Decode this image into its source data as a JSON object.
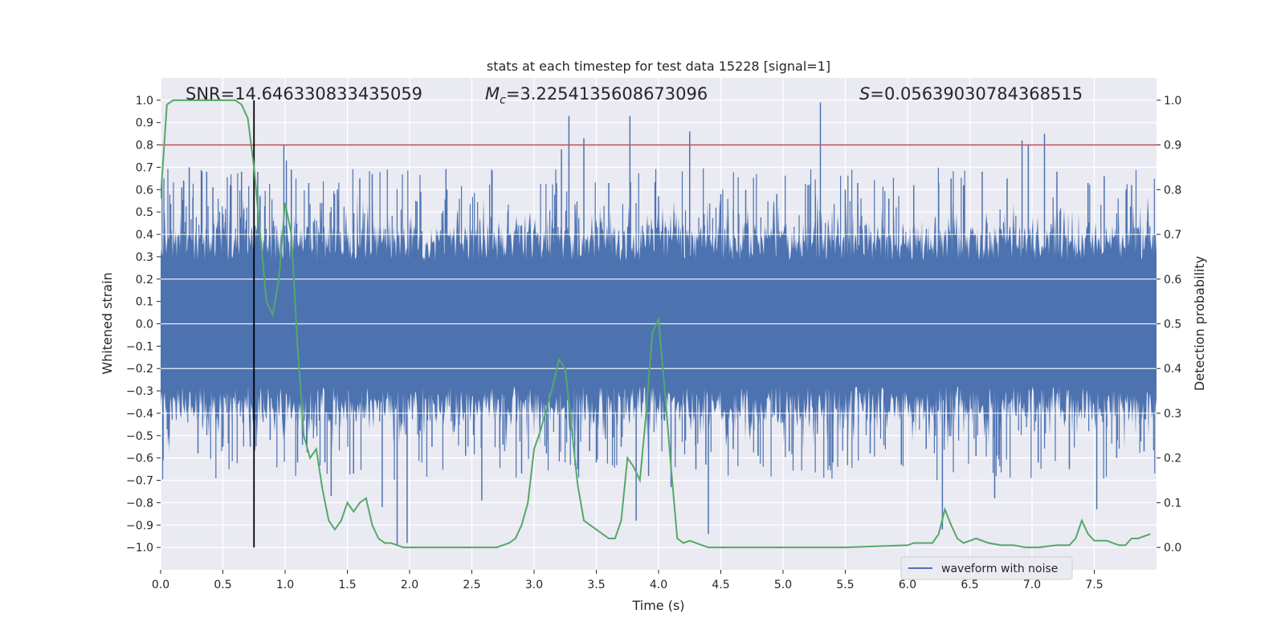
{
  "chart_data": {
    "type": "line",
    "title": "stats at each timestep for test data 15228 [signal=1]",
    "xlabel": "Time (s)",
    "ylabel": "Whitened strain",
    "y2label": "Detection probability",
    "xlim": [
      0,
      8
    ],
    "ylim": [
      -1.1,
      1.1
    ],
    "y2lim": [
      -0.05,
      1.05
    ],
    "x_ticks": [
      0.0,
      0.5,
      1.0,
      1.5,
      2.0,
      2.5,
      3.0,
      3.5,
      4.0,
      4.5,
      5.0,
      5.5,
      6.0,
      6.5,
      7.0,
      7.5
    ],
    "x_tick_labels": [
      "0.0",
      "0.5",
      "1.0",
      "1.5",
      "2.0",
      "2.5",
      "3.0",
      "3.5",
      "4.0",
      "4.5",
      "5.0",
      "5.5",
      "6.0",
      "6.5",
      "7.0",
      "7.5"
    ],
    "y_ticks": [
      -1.0,
      -0.9,
      -0.8,
      -0.7,
      -0.6,
      -0.5,
      -0.4,
      -0.3,
      -0.2,
      -0.1,
      0.0,
      0.1,
      0.2,
      0.3,
      0.4,
      0.5,
      0.6,
      0.7,
      0.8,
      0.9,
      1.0
    ],
    "y_tick_labels": [
      "−1.0",
      "−0.9",
      "−0.8",
      "−0.7",
      "−0.6",
      "−0.5",
      "−0.4",
      "−0.3",
      "−0.2",
      "−0.1",
      "0.0",
      "0.1",
      "0.2",
      "0.3",
      "0.4",
      "0.5",
      "0.6",
      "0.7",
      "0.8",
      "0.9",
      "1.0"
    ],
    "y2_ticks": [
      0.0,
      0.1,
      0.2,
      0.3,
      0.4,
      0.5,
      0.6,
      0.7,
      0.8,
      0.9,
      1.0
    ],
    "y2_tick_labels": [
      "0.0",
      "0.1",
      "0.2",
      "0.3",
      "0.4",
      "0.5",
      "0.6",
      "0.7",
      "0.8",
      "0.9",
      "1.0"
    ],
    "grid": true,
    "legend": {
      "placement": "lower-right",
      "entries": [
        "waveform with noise"
      ]
    },
    "annotations": {
      "snr": "SNR=14.646330833435059",
      "mc_symbol": "M",
      "mc_sub": "c",
      "mc_value": "=3.2254135608673096",
      "s_symbol": "S",
      "s_value": "=0.05639030784368515"
    },
    "threshold_line": {
      "y2": 0.9,
      "color": "#c44e52"
    },
    "marker_line": {
      "x": 0.75,
      "ymin": -1.0,
      "ymax": 1.0,
      "color": "#000000"
    },
    "waveform": {
      "name": "waveform with noise",
      "color": "#4c72b0",
      "base_amplitude": 0.2,
      "spikes": [
        {
          "x": 0.02,
          "y": -0.61
        },
        {
          "x": 0.17,
          "y": 0.61
        },
        {
          "x": 0.23,
          "y": 0.7
        },
        {
          "x": 0.3,
          "y": -0.58
        },
        {
          "x": 0.37,
          "y": 0.68
        },
        {
          "x": 0.42,
          "y": 0.61
        },
        {
          "x": 0.5,
          "y": -0.55
        },
        {
          "x": 0.56,
          "y": 0.62
        },
        {
          "x": 0.65,
          "y": 0.68
        },
        {
          "x": 0.72,
          "y": -0.55
        },
        {
          "x": 0.78,
          "y": 0.68
        },
        {
          "x": 0.88,
          "y": -0.52
        },
        {
          "x": 0.99,
          "y": 0.8
        },
        {
          "x": 1.01,
          "y": 0.73
        },
        {
          "x": 1.05,
          "y": 0.69
        },
        {
          "x": 1.1,
          "y": -0.62
        },
        {
          "x": 1.19,
          "y": 0.63
        },
        {
          "x": 1.32,
          "y": -0.62
        },
        {
          "x": 1.37,
          "y": -0.77
        },
        {
          "x": 1.42,
          "y": 0.6
        },
        {
          "x": 1.55,
          "y": -0.67
        },
        {
          "x": 1.6,
          "y": 0.65
        },
        {
          "x": 1.7,
          "y": 0.67
        },
        {
          "x": 1.78,
          "y": -0.82
        },
        {
          "x": 1.9,
          "y": -0.99
        },
        {
          "x": 1.98,
          "y": -0.98
        },
        {
          "x": 2.05,
          "y": 0.55
        },
        {
          "x": 2.18,
          "y": -0.55
        },
        {
          "x": 2.3,
          "y": 0.6
        },
        {
          "x": 2.45,
          "y": -0.59
        },
        {
          "x": 2.58,
          "y": -0.79
        },
        {
          "x": 2.66,
          "y": 0.69
        },
        {
          "x": 2.75,
          "y": -0.54
        },
        {
          "x": 2.9,
          "y": -0.67
        },
        {
          "x": 3.1,
          "y": -0.58
        },
        {
          "x": 3.22,
          "y": 0.78
        },
        {
          "x": 3.28,
          "y": 0.93
        },
        {
          "x": 3.35,
          "y": -0.65
        },
        {
          "x": 3.4,
          "y": 0.83
        },
        {
          "x": 3.5,
          "y": -0.62
        },
        {
          "x": 3.6,
          "y": 0.63
        },
        {
          "x": 3.7,
          "y": -0.55
        },
        {
          "x": 3.77,
          "y": 0.93
        },
        {
          "x": 3.82,
          "y": -0.88
        },
        {
          "x": 3.92,
          "y": -0.68
        },
        {
          "x": 4.0,
          "y": 0.57
        },
        {
          "x": 4.1,
          "y": -0.73
        },
        {
          "x": 4.25,
          "y": 0.86
        },
        {
          "x": 4.3,
          "y": -0.65
        },
        {
          "x": 4.38,
          "y": -0.63
        },
        {
          "x": 4.4,
          "y": -0.94
        },
        {
          "x": 4.5,
          "y": 0.58
        },
        {
          "x": 4.6,
          "y": -0.56
        },
        {
          "x": 4.7,
          "y": 0.6
        },
        {
          "x": 4.8,
          "y": -0.59
        },
        {
          "x": 4.95,
          "y": 0.58
        },
        {
          "x": 5.05,
          "y": -0.57
        },
        {
          "x": 5.2,
          "y": 0.62
        },
        {
          "x": 5.3,
          "y": 0.99
        },
        {
          "x": 5.4,
          "y": -0.62
        },
        {
          "x": 5.5,
          "y": 0.6
        },
        {
          "x": 5.6,
          "y": 0.63
        },
        {
          "x": 5.7,
          "y": -0.58
        },
        {
          "x": 5.85,
          "y": 0.56
        },
        {
          "x": 5.95,
          "y": -0.63
        },
        {
          "x": 6.05,
          "y": 0.62
        },
        {
          "x": 6.15,
          "y": -0.56
        },
        {
          "x": 6.25,
          "y": 0.63
        },
        {
          "x": 6.28,
          "y": -0.92
        },
        {
          "x": 6.35,
          "y": 0.65
        },
        {
          "x": 6.45,
          "y": 0.62
        },
        {
          "x": 6.55,
          "y": -0.59
        },
        {
          "x": 6.6,
          "y": 0.68
        },
        {
          "x": 6.7,
          "y": -0.78
        },
        {
          "x": 6.8,
          "y": 0.65
        },
        {
          "x": 6.92,
          "y": 0.82
        },
        {
          "x": 6.97,
          "y": 0.8
        },
        {
          "x": 7.05,
          "y": -0.62
        },
        {
          "x": 7.1,
          "y": 0.85
        },
        {
          "x": 7.2,
          "y": 0.68
        },
        {
          "x": 7.3,
          "y": -0.65
        },
        {
          "x": 7.45,
          "y": 0.63
        },
        {
          "x": 7.52,
          "y": -0.83
        },
        {
          "x": 7.58,
          "y": 0.66
        },
        {
          "x": 7.68,
          "y": -0.6
        },
        {
          "x": 7.8,
          "y": 0.62
        },
        {
          "x": 7.9,
          "y": -0.57
        }
      ]
    },
    "probability": {
      "color": "#55a868",
      "x": [
        0.0,
        0.05,
        0.1,
        0.15,
        0.6,
        0.65,
        0.7,
        0.75,
        0.8,
        0.85,
        0.9,
        0.95,
        1.0,
        1.05,
        1.1,
        1.15,
        1.2,
        1.25,
        1.3,
        1.35,
        1.4,
        1.45,
        1.5,
        1.55,
        1.6,
        1.65,
        1.7,
        1.75,
        1.8,
        1.85,
        1.9,
        1.95,
        2.0,
        2.1,
        2.2,
        2.3,
        2.4,
        2.5,
        2.6,
        2.7,
        2.8,
        2.85,
        2.9,
        2.95,
        3.0,
        3.05,
        3.1,
        3.15,
        3.2,
        3.25,
        3.3,
        3.35,
        3.4,
        3.45,
        3.5,
        3.6,
        3.65,
        3.7,
        3.75,
        3.8,
        3.85,
        3.9,
        3.95,
        4.0,
        4.05,
        4.1,
        4.15,
        4.2,
        4.25,
        4.3,
        4.35,
        4.4,
        4.45,
        4.5,
        4.6,
        4.7,
        4.8,
        4.9,
        5.0,
        5.5,
        6.0,
        6.05,
        6.1,
        6.2,
        6.25,
        6.3,
        6.35,
        6.4,
        6.45,
        6.55,
        6.65,
        6.75,
        6.85,
        6.95,
        7.05,
        7.2,
        7.3,
        7.35,
        7.4,
        7.45,
        7.5,
        7.55,
        7.6,
        7.7,
        7.75,
        7.8,
        7.85,
        7.95
      ],
      "y": [
        0.78,
        0.99,
        1.0,
        1.0,
        1.0,
        0.99,
        0.96,
        0.85,
        0.7,
        0.55,
        0.52,
        0.6,
        0.77,
        0.7,
        0.45,
        0.25,
        0.2,
        0.22,
        0.13,
        0.06,
        0.04,
        0.06,
        0.1,
        0.08,
        0.1,
        0.11,
        0.05,
        0.02,
        0.01,
        0.01,
        0.005,
        0.0,
        0.0,
        0.0,
        0.0,
        0.0,
        0.0,
        0.0,
        0.0,
        0.0,
        0.01,
        0.02,
        0.05,
        0.1,
        0.22,
        0.26,
        0.31,
        0.36,
        0.42,
        0.4,
        0.27,
        0.14,
        0.06,
        0.05,
        0.04,
        0.02,
        0.02,
        0.06,
        0.2,
        0.18,
        0.15,
        0.3,
        0.48,
        0.51,
        0.35,
        0.18,
        0.02,
        0.01,
        0.015,
        0.01,
        0.005,
        0.0,
        0.0,
        0.0,
        0.0,
        0.0,
        0.0,
        0.0,
        0.0,
        0.0,
        0.005,
        0.01,
        0.01,
        0.01,
        0.03,
        0.085,
        0.05,
        0.02,
        0.01,
        0.02,
        0.01,
        0.005,
        0.005,
        0.0,
        0.0,
        0.005,
        0.005,
        0.02,
        0.06,
        0.03,
        0.015,
        0.015,
        0.015,
        0.005,
        0.005,
        0.02,
        0.02,
        0.03
      ]
    }
  }
}
